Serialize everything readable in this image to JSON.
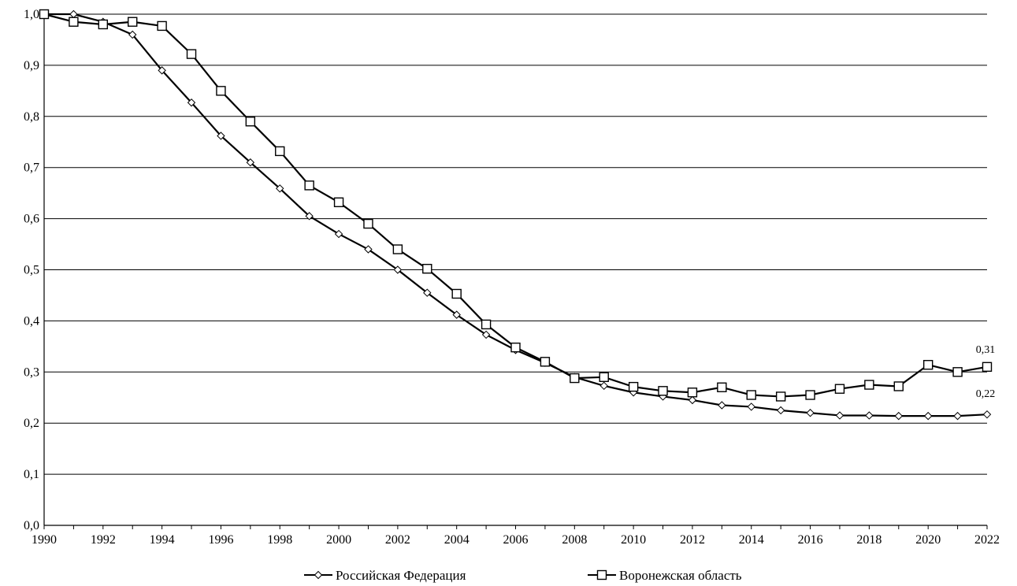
{
  "chart_data": {
    "type": "line",
    "title": "",
    "xlabel": "",
    "ylabel": "",
    "xlim": [
      1990,
      2022
    ],
    "ylim": [
      0.0,
      1.0
    ],
    "grid": "horizontal",
    "legend_position": "bottom-center",
    "x_ticks": [
      "1990",
      "1992",
      "1994",
      "1996",
      "1998",
      "2000",
      "2002",
      "2004",
      "2006",
      "2008",
      "2010",
      "2012",
      "2014",
      "2016",
      "2018",
      "2020",
      "2022"
    ],
    "y_ticks": [
      "0,0",
      "0,1",
      "0,2",
      "0,3",
      "0,4",
      "0,5",
      "0,6",
      "0,7",
      "0,8",
      "0,9",
      "1,0"
    ],
    "x": [
      1990,
      1991,
      1992,
      1993,
      1994,
      1995,
      1996,
      1997,
      1998,
      1999,
      2000,
      2001,
      2002,
      2003,
      2004,
      2005,
      2006,
      2007,
      2008,
      2009,
      2010,
      2011,
      2012,
      2013,
      2014,
      2015,
      2016,
      2017,
      2018,
      2019,
      2020,
      2021,
      2022
    ],
    "series": [
      {
        "name": "Российская Федерация",
        "marker": "diamond",
        "values": [
          1.0,
          1.0,
          0.985,
          0.96,
          0.89,
          0.827,
          0.762,
          0.71,
          0.659,
          0.605,
          0.57,
          0.54,
          0.5,
          0.455,
          0.412,
          0.373,
          0.343,
          0.318,
          0.29,
          0.273,
          0.26,
          0.252,
          0.245,
          0.235,
          0.232,
          0.225,
          0.22,
          0.215,
          0.215,
          0.214,
          0.214,
          0.214,
          0.217
        ]
      },
      {
        "name": "Воронежская область",
        "marker": "square",
        "values": [
          1.0,
          0.985,
          0.98,
          0.985,
          0.977,
          0.922,
          0.85,
          0.79,
          0.732,
          0.665,
          0.632,
          0.59,
          0.54,
          0.502,
          0.453,
          0.393,
          0.348,
          0.32,
          0.288,
          0.29,
          0.271,
          0.263,
          0.26,
          0.27,
          0.255,
          0.252,
          0.255,
          0.267,
          0.275,
          0.272,
          0.314,
          0.3,
          0.31
        ]
      }
    ],
    "annotations": [
      {
        "text": "0,31",
        "x": 2022,
        "y": 0.31,
        "series": 1
      },
      {
        "text": "0,22",
        "x": 2022,
        "y": 0.217,
        "series": 0
      }
    ]
  }
}
